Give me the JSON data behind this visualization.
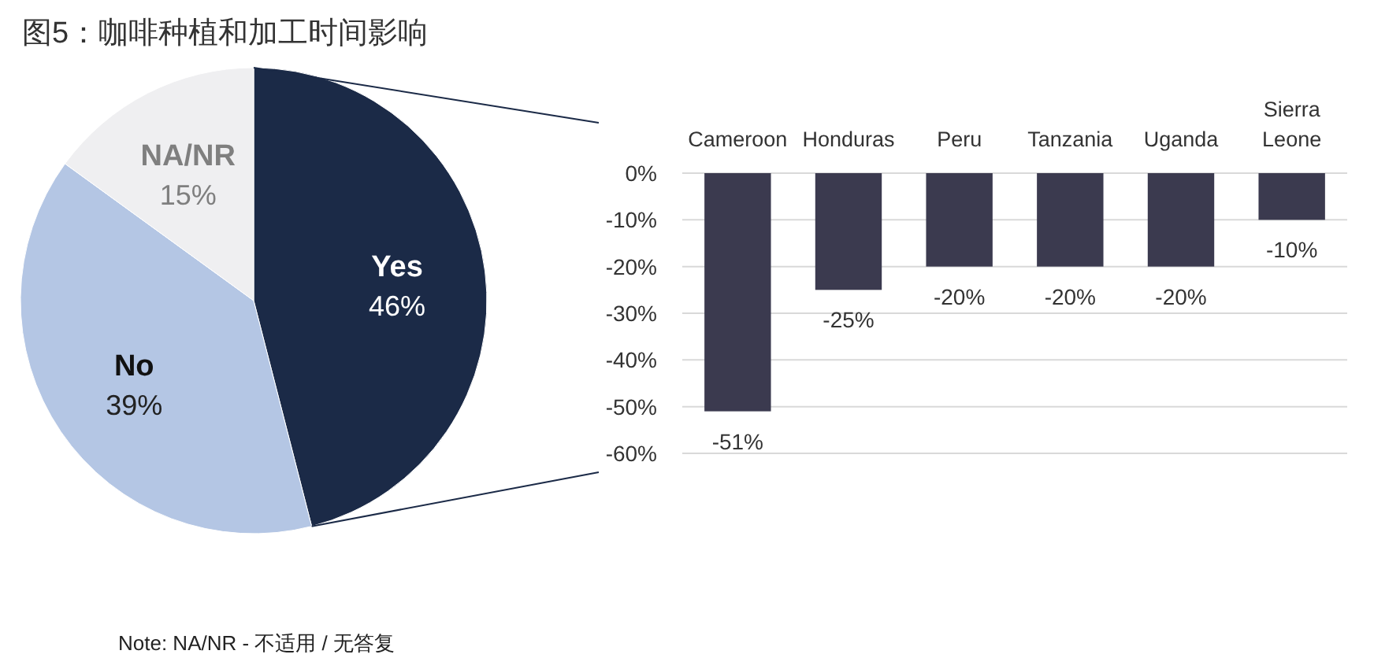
{
  "chart_data": [
    {
      "type": "pie",
      "title": "图5：咖啡种植和加工时间影响",
      "categories": [
        "Yes",
        "No",
        "NA/NR"
      ],
      "values": [
        46,
        39,
        15
      ],
      "value_labels": [
        "46%",
        "39%",
        "15%"
      ],
      "colors": [
        "#1b2a47",
        "#b4c6e4",
        "#efeff1"
      ],
      "annotations": [
        "Note: NA/NR - 不适用 / 无答复"
      ]
    },
    {
      "type": "bar",
      "categories": [
        "Cameroon",
        "Honduras",
        "Peru",
        "Tanzania",
        "Uganda",
        "Sierra Leone"
      ],
      "values": [
        -51,
        -25,
        -20,
        -20,
        -20,
        -10
      ],
      "value_labels": [
        "-51%",
        "-25%",
        "-20%",
        "-20%",
        "-20%",
        "-10%"
      ],
      "color": "#3b3a4f",
      "ylim": [
        -60,
        0
      ],
      "yticks": [
        {
          "value": 0,
          "label": "0%"
        },
        {
          "value": -10,
          "label": "-10%"
        },
        {
          "value": -20,
          "label": "-20%"
        },
        {
          "value": -30,
          "label": "-30%"
        },
        {
          "value": -40,
          "label": "-40%"
        },
        {
          "value": -50,
          "label": "-50%"
        },
        {
          "value": -60,
          "label": "-60%"
        }
      ],
      "grid": "y"
    }
  ]
}
